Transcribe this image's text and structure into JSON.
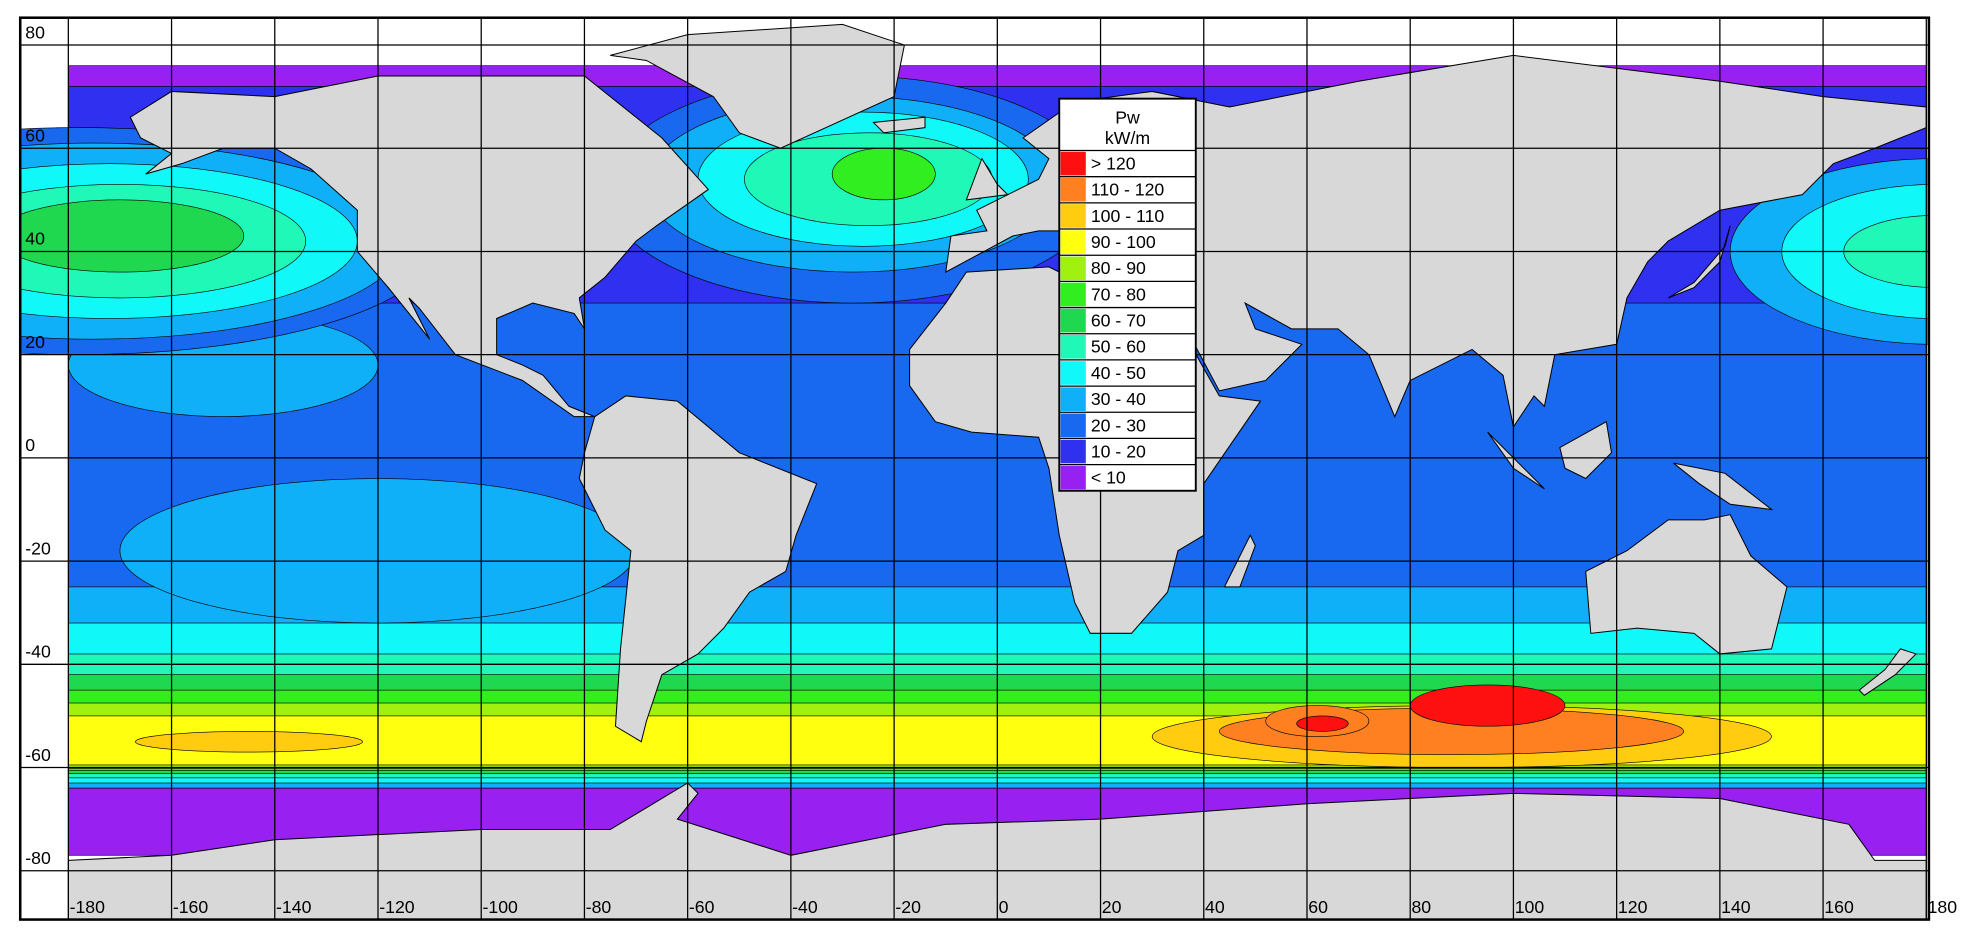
{
  "map": {
    "lat_ticks": [
      80,
      60,
      40,
      20,
      0,
      -20,
      -40,
      -60,
      -80
    ],
    "lon_ticks": [
      -180,
      -160,
      -140,
      -120,
      -100,
      -80,
      -60,
      -40,
      -20,
      0,
      20,
      40,
      60,
      80,
      100,
      120,
      140,
      160,
      180
    ],
    "legend": {
      "title": "Pw",
      "unit": "kW/m",
      "items": [
        {
          "label": "> 120",
          "color": "#ff1010"
        },
        {
          "label": "110 - 120",
          "color": "#ff8020"
        },
        {
          "label": "100 - 110",
          "color": "#ffcc10"
        },
        {
          "label": "90 - 100",
          "color": "#ffff10"
        },
        {
          "label": "80 - 90",
          "color": "#a0f010"
        },
        {
          "label": "70 - 80",
          "color": "#30ee20"
        },
        {
          "label": "60 - 70",
          "color": "#20d850"
        },
        {
          "label": "50 - 60",
          "color": "#20f8b8"
        },
        {
          "label": "40 - 50",
          "color": "#10f8f8"
        },
        {
          "label": "30 - 40",
          "color": "#10b0f8"
        },
        {
          "label": "20 - 30",
          "color": "#1868f0"
        },
        {
          "label": "10 - 20",
          "color": "#3030f0"
        },
        {
          "label": "< 10",
          "color": "#9820f0"
        }
      ]
    }
  }
}
